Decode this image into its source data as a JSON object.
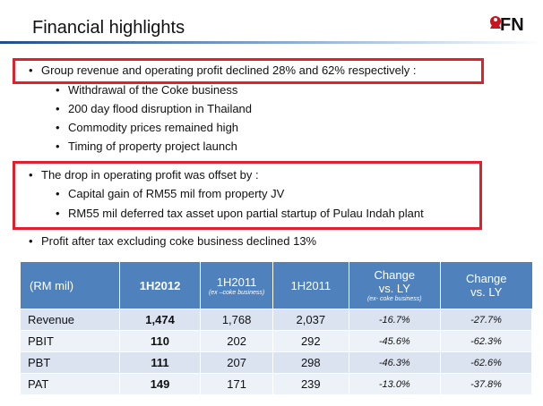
{
  "title": "Financial highlights",
  "logo_text": "FN",
  "bullets": [
    {
      "level": 1,
      "text": "Group revenue and operating profit declined 28% and 62% respectively :"
    },
    {
      "level": 2,
      "text": "Withdrawal of the Coke business"
    },
    {
      "level": 2,
      "text": "200 day flood disruption in Thailand"
    },
    {
      "level": 2,
      "text": "Commodity prices remained high"
    },
    {
      "level": 2,
      "text": "Timing of property project launch"
    },
    {
      "level": 1,
      "text": "The drop in operating profit was offset by :"
    },
    {
      "level": 2,
      "text": "Capital gain of RM55 mil from property JV"
    },
    {
      "level": 2,
      "text": "RM55 mil deferred tax asset upon partial startup of Pulau Indah plant"
    },
    {
      "level": 1,
      "text": "Profit after tax excluding coke business declined 13%"
    }
  ],
  "table": {
    "headers": [
      {
        "label": "(RM mil)",
        "sub": ""
      },
      {
        "label": "1H2012",
        "sub": ""
      },
      {
        "label": "1H2011",
        "sub": "(ex –coke business)"
      },
      {
        "label": "1H2011",
        "sub": ""
      },
      {
        "label": "Change vs. LY",
        "sub": "(ex- coke business)"
      },
      {
        "label": "Change vs. LY",
        "sub": ""
      }
    ],
    "rows": [
      [
        "Revenue",
        "1,474",
        "1,768",
        "2,037",
        "-16.7%",
        "-27.7%"
      ],
      [
        "PBIT",
        "110",
        "202",
        "292",
        "-45.6%",
        "-62.3%"
      ],
      [
        "PBT",
        "111",
        "207",
        "298",
        "-46.3%",
        "-62.6%"
      ],
      [
        "PAT",
        "149",
        "171",
        "239",
        "-13.0%",
        "-37.8%"
      ]
    ]
  },
  "colors": {
    "accent_blue": "#4f81bd",
    "highlight_red": "#e0202a",
    "row_odd": "#dbe3f1",
    "row_even": "#edf1f8"
  }
}
